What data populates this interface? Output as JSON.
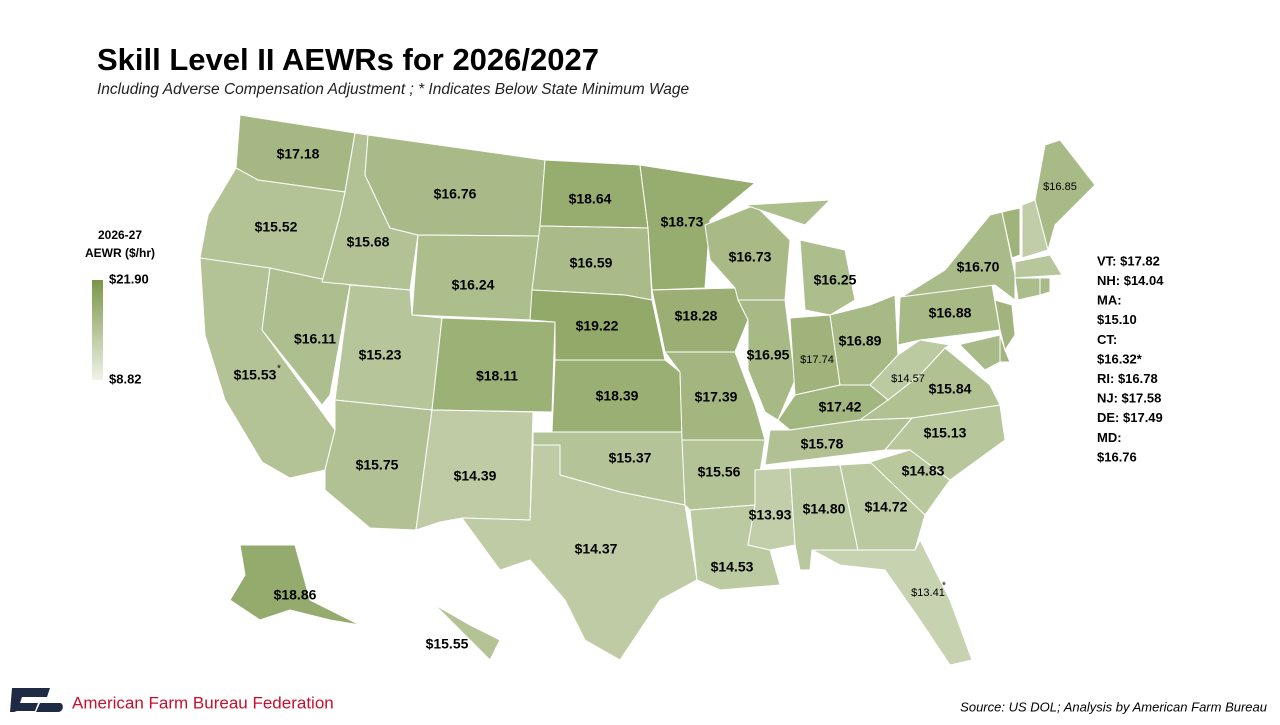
{
  "title": "Skill Level II AEWRs for 2026/2027",
  "subtitle": "Including Adverse Compensation Adjustment ; * Indicates Below State Minimum Wage",
  "legend": {
    "title_lines": [
      "2026-27",
      "AEWR ($/hr)"
    ],
    "max": {
      "value": 21.9,
      "label": "$21.90"
    },
    "min": {
      "value": 8.82,
      "label": "$8.82"
    },
    "color_low": "#f0f2e8",
    "color_high": "#7a9648"
  },
  "states": [
    {
      "id": "WA",
      "value": 17.18,
      "label": "$17.18"
    },
    {
      "id": "OR",
      "value": 15.52,
      "label": "$15.52"
    },
    {
      "id": "CA",
      "value": 15.53,
      "label": "$15.53",
      "note": "*"
    },
    {
      "id": "NV",
      "value": 16.11,
      "label": "$16.11"
    },
    {
      "id": "ID",
      "value": 15.68,
      "label": "$15.68"
    },
    {
      "id": "MT",
      "value": 16.76,
      "label": "$16.76"
    },
    {
      "id": "WY",
      "value": 16.24,
      "label": "$16.24"
    },
    {
      "id": "UT",
      "value": 15.23,
      "label": "$15.23"
    },
    {
      "id": "AZ",
      "value": 15.75,
      "label": "$15.75"
    },
    {
      "id": "CO",
      "value": 18.11,
      "label": "$18.11"
    },
    {
      "id": "NM",
      "value": 14.39,
      "label": "$14.39"
    },
    {
      "id": "ND",
      "value": 18.64,
      "label": "$18.64"
    },
    {
      "id": "SD",
      "value": 16.59,
      "label": "$16.59"
    },
    {
      "id": "NE",
      "value": 19.22,
      "label": "$19.22"
    },
    {
      "id": "KS",
      "value": 18.39,
      "label": "$18.39"
    },
    {
      "id": "OK",
      "value": 15.37,
      "label": "$15.37"
    },
    {
      "id": "TX",
      "value": 14.37,
      "label": "$14.37"
    },
    {
      "id": "MN",
      "value": 18.73,
      "label": "$18.73"
    },
    {
      "id": "IA",
      "value": 18.28,
      "label": "$18.28"
    },
    {
      "id": "MO",
      "value": 17.39,
      "label": "$17.39"
    },
    {
      "id": "AR",
      "value": 15.56,
      "label": "$15.56"
    },
    {
      "id": "LA",
      "value": 14.53,
      "label": "$14.53"
    },
    {
      "id": "WI",
      "value": 16.73,
      "label": "$16.73"
    },
    {
      "id": "IL",
      "value": 16.95,
      "label": "$16.95"
    },
    {
      "id": "MI",
      "value": 16.25,
      "label": "$16.25"
    },
    {
      "id": "IN",
      "value": 17.74,
      "label": "$17.74"
    },
    {
      "id": "OH",
      "value": 16.89,
      "label": "$16.89"
    },
    {
      "id": "KY",
      "value": 17.42,
      "label": "$17.42"
    },
    {
      "id": "TN",
      "value": 15.78,
      "label": "$15.78"
    },
    {
      "id": "MS",
      "value": 13.93,
      "label": "$13.93"
    },
    {
      "id": "AL",
      "value": 14.8,
      "label": "$14.80"
    },
    {
      "id": "GA",
      "value": 14.72,
      "label": "$14.72"
    },
    {
      "id": "FL",
      "value": 13.41,
      "label": "$13.41",
      "note": "*"
    },
    {
      "id": "SC",
      "value": 14.83,
      "label": "$14.83"
    },
    {
      "id": "NC",
      "value": 15.13,
      "label": "$15.13"
    },
    {
      "id": "VA",
      "value": 15.84,
      "label": "$15.84"
    },
    {
      "id": "WV",
      "value": 14.57,
      "label": "$14.57"
    },
    {
      "id": "PA",
      "value": 16.88,
      "label": "$16.88"
    },
    {
      "id": "NY",
      "value": 16.7,
      "label": "$16.70"
    },
    {
      "id": "ME",
      "value": 16.85,
      "label": "$16.85"
    },
    {
      "id": "VT",
      "value": 17.82
    },
    {
      "id": "NH",
      "value": 14.04
    },
    {
      "id": "MA",
      "value": 15.1
    },
    {
      "id": "CT",
      "value": 16.32
    },
    {
      "id": "RI",
      "value": 16.78
    },
    {
      "id": "NJ",
      "value": 17.58
    },
    {
      "id": "DE",
      "value": 17.49
    },
    {
      "id": "MD",
      "value": 16.76
    },
    {
      "id": "AK",
      "value": 18.86,
      "label": "$18.86"
    },
    {
      "id": "HI",
      "value": 15.55,
      "label": "$15.55"
    }
  ],
  "side_notes": [
    "VT: $17.82",
    "NH: $14.04",
    "MA:",
    "$15.10",
    "CT:",
    "$16.32*",
    "RI: $16.78",
    "NJ: $17.58",
    "DE: $17.49",
    "MD:",
    "$16.76"
  ],
  "brand": "American Farm Bureau Federation",
  "source": "Source: US DOL; Analysis by American Farm Bureau"
}
